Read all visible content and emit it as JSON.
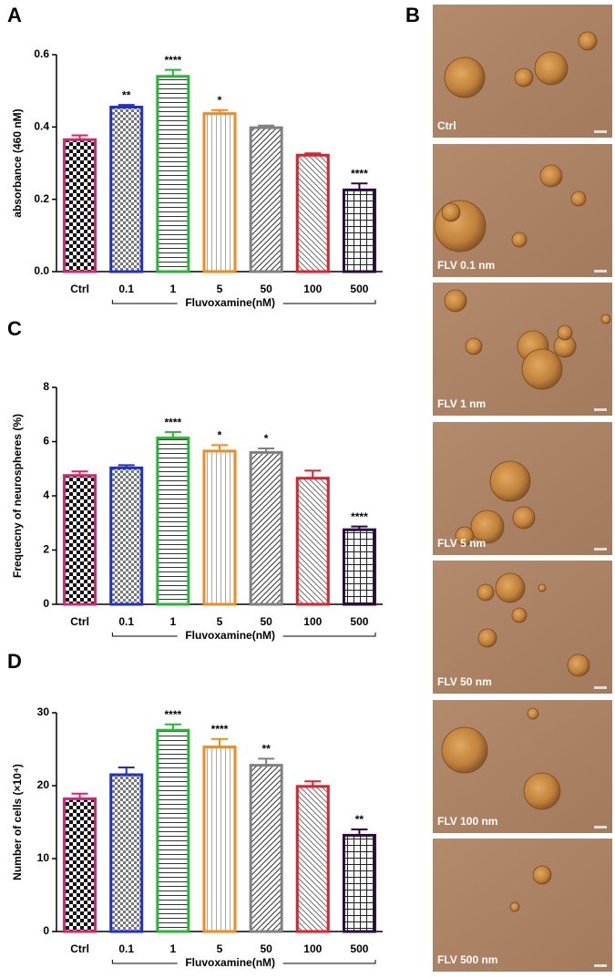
{
  "chart_data": [
    {
      "type": "bar",
      "panel": "A",
      "ylabel": "absorbance (460 nM)",
      "xlabel": "Fluvoxamine(nM)",
      "categories": [
        "Ctrl",
        "0.1",
        "1",
        "5",
        "50",
        "100",
        "500"
      ],
      "values": [
        0.365,
        0.455,
        0.54,
        0.437,
        0.398,
        0.322,
        0.226
      ],
      "errors": [
        0.012,
        0.006,
        0.018,
        0.01,
        0.006,
        0.005,
        0.018
      ],
      "annotations": [
        null,
        "**",
        "****",
        "*",
        null,
        null,
        "****"
      ],
      "colors": [
        "#d6246e",
        "#1f2fd0",
        "#22b830",
        "#f28a1c",
        "#808080",
        "#e0202a",
        "#2a0a40"
      ],
      "ylim": [
        0,
        0.6
      ],
      "yticks": [
        {
          "value": 0,
          "label": "0.0"
        },
        0.2,
        0.4,
        0.6
      ]
    },
    {
      "type": "bar",
      "panel": "C",
      "ylabel": "Frequecny of neurospheres (%)",
      "xlabel": "Fluvoxamine(nM)",
      "categories": [
        "Ctrl",
        "0.1",
        "1",
        "5",
        "50",
        "100",
        "500"
      ],
      "values": [
        4.75,
        5.03,
        6.13,
        5.65,
        5.6,
        4.65,
        2.75
      ],
      "errors": [
        0.15,
        0.1,
        0.22,
        0.22,
        0.15,
        0.28,
        0.12
      ],
      "annotations": [
        null,
        null,
        "****",
        "*",
        "*",
        null,
        "****"
      ],
      "colors": [
        "#d6246e",
        "#1f2fd0",
        "#22b830",
        "#f28a1c",
        "#808080",
        "#e0202a",
        "#2a0a40"
      ],
      "ylim": [
        0,
        8
      ],
      "yticks": [
        0,
        2,
        4,
        6,
        8
      ]
    },
    {
      "type": "bar",
      "panel": "D",
      "ylabel": "Number of cells (×10⁴)",
      "xlabel": "Fluvoxamine(nM)",
      "categories": [
        "Ctrl",
        "0.1",
        "1",
        "5",
        "50",
        "100",
        "500"
      ],
      "values": [
        18.2,
        21.5,
        27.6,
        25.3,
        22.8,
        19.9,
        13.2
      ],
      "errors": [
        0.7,
        1.0,
        0.8,
        1.1,
        0.9,
        0.7,
        0.8
      ],
      "annotations": [
        null,
        null,
        "****",
        "****",
        "**",
        null,
        "**"
      ],
      "colors": [
        "#d6246e",
        "#1f2fd0",
        "#22b830",
        "#f28a1c",
        "#808080",
        "#e0202a",
        "#2a0a40"
      ],
      "ylim": [
        0,
        30
      ],
      "yticks": [
        0,
        10,
        20,
        30
      ]
    }
  ],
  "image_panel": {
    "panel": "B",
    "captions": [
      "Ctrl",
      "FLV 0.1 nm",
      "FLV 1 nm",
      "FLV 5 nm",
      "FLV 50 nm",
      "FLV 100 nm",
      "FLV 500 nm"
    ]
  }
}
